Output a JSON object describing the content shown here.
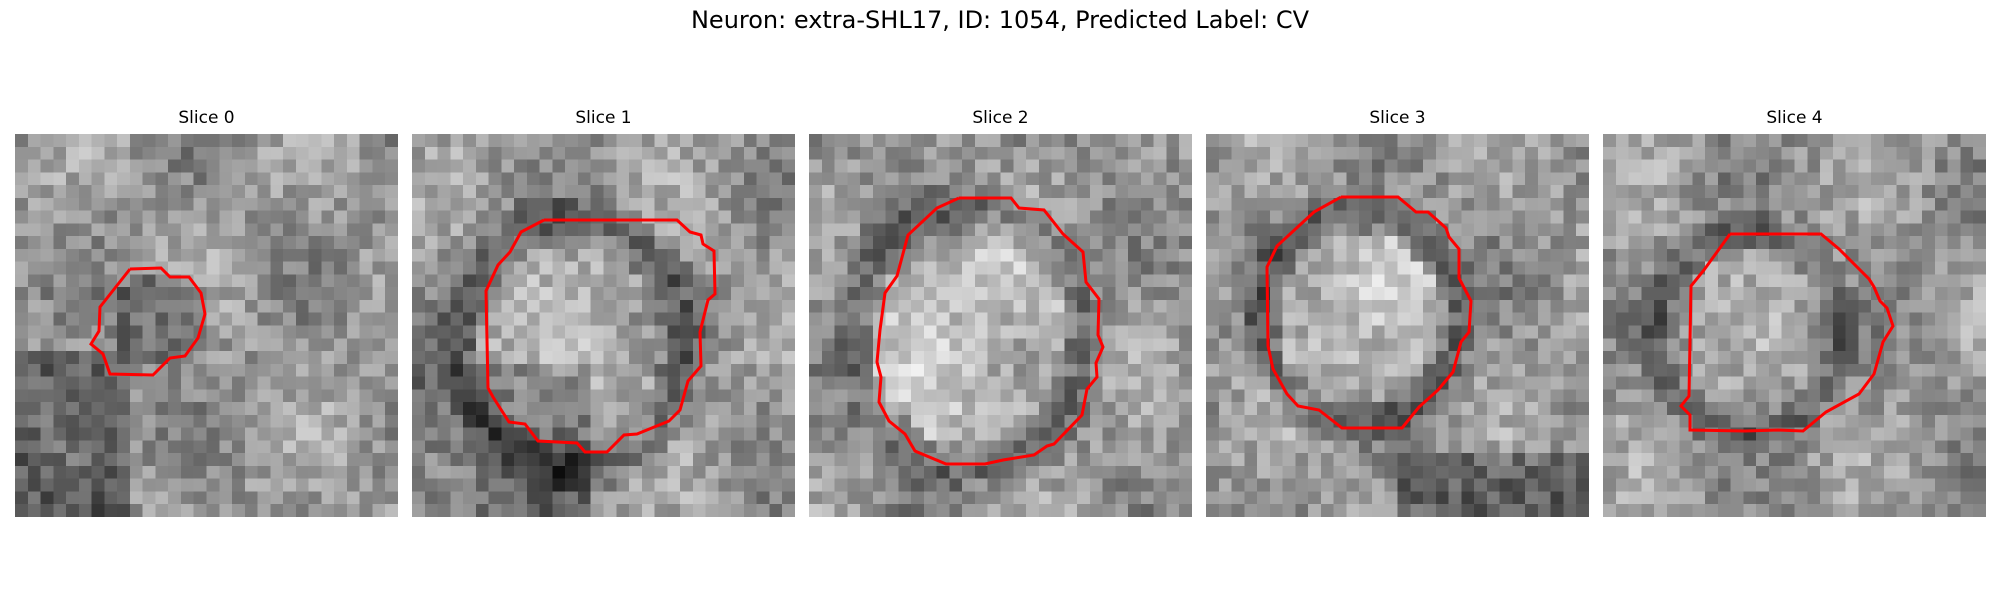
{
  "figure": {
    "title": "Neuron: extra-SHL17, ID: 1054, Predicted Label: CV",
    "outline_color": "#ff0000",
    "colormap": "grayscale",
    "panels": [
      {
        "title": "Slice 0"
      },
      {
        "title": "Slice 1"
      },
      {
        "title": "Slice 2"
      },
      {
        "title": "Slice 3"
      },
      {
        "title": "Slice 4"
      }
    ]
  }
}
